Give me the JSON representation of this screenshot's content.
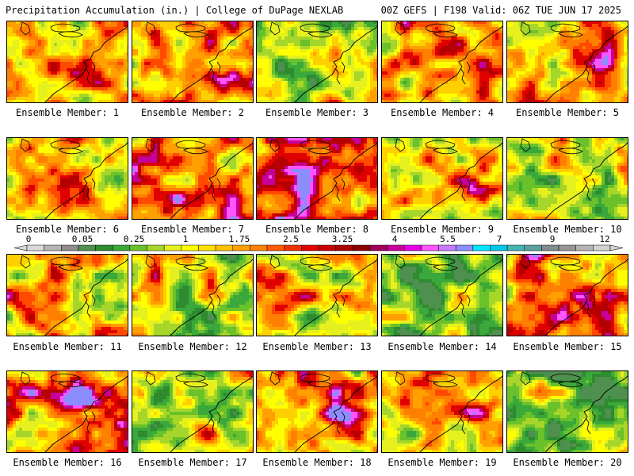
{
  "header": {
    "left": "Precipitation Accumulation (in.) | College of DuPage NEXLAB",
    "right": "00Z GEFS | F198 Valid: 06Z TUE JUN 17 2025"
  },
  "members": [
    {
      "label": "Ensemble Member: 1",
      "wetness": 0.6,
      "seed": 11,
      "hot": 1
    },
    {
      "label": "Ensemble Member: 2",
      "wetness": 0.62,
      "seed": 23,
      "hot": 2
    },
    {
      "label": "Ensemble Member: 3",
      "wetness": 0.42,
      "seed": 37,
      "hot": 0
    },
    {
      "label": "Ensemble Member: 4",
      "wetness": 0.55,
      "seed": 41,
      "hot": 1
    },
    {
      "label": "Ensemble Member: 5",
      "wetness": 0.62,
      "seed": 53,
      "hot": 2
    },
    {
      "label": "Ensemble Member: 6",
      "wetness": 0.5,
      "seed": 61,
      "hot": 0
    },
    {
      "label": "Ensemble Member: 7",
      "wetness": 0.62,
      "seed": 71,
      "hot": 2
    },
    {
      "label": "Ensemble Member: 8",
      "wetness": 0.72,
      "seed": 83,
      "hot": 1
    },
    {
      "label": "Ensemble Member: 9",
      "wetness": 0.55,
      "seed": 97,
      "hot": 2
    },
    {
      "label": "Ensemble Member: 10",
      "wetness": 0.42,
      "seed": 101,
      "hot": 0
    },
    {
      "label": "Ensemble Member: 11",
      "wetness": 0.58,
      "seed": 113,
      "hot": 0
    },
    {
      "label": "Ensemble Member: 12",
      "wetness": 0.45,
      "seed": 127,
      "hot": 1
    },
    {
      "label": "Ensemble Member: 13",
      "wetness": 0.52,
      "seed": 131,
      "hot": 1
    },
    {
      "label": "Ensemble Member: 14",
      "wetness": 0.3,
      "seed": 149,
      "hot": 0
    },
    {
      "label": "Ensemble Member: 15",
      "wetness": 0.62,
      "seed": 151,
      "hot": 1
    },
    {
      "label": "Ensemble Member: 16",
      "wetness": 0.68,
      "seed": 163,
      "hot": 2
    },
    {
      "label": "Ensemble Member: 17",
      "wetness": 0.4,
      "seed": 173,
      "hot": 1
    },
    {
      "label": "Ensemble Member: 18",
      "wetness": 0.6,
      "seed": 181,
      "hot": 2
    },
    {
      "label": "Ensemble Member: 19",
      "wetness": 0.55,
      "seed": 191,
      "hot": 2
    },
    {
      "label": "Ensemble Member: 20",
      "wetness": 0.35,
      "seed": 199,
      "hot": 0
    }
  ],
  "colorbar": {
    "labels": [
      "0",
      "0.05",
      "0.25",
      "1",
      "1.75",
      "2.5",
      "3.25",
      "4",
      "5.5",
      "7",
      "9",
      "12"
    ],
    "colors": [
      "#d9d9d9",
      "#b4b4b4",
      "#8c8c8c",
      "#4f8f4f",
      "#2e8b2e",
      "#3aa83a",
      "#6ac12a",
      "#a6d62a",
      "#e6f01e",
      "#ffff00",
      "#ffe000",
      "#ffc000",
      "#ffa000",
      "#ff7f00",
      "#ff5a00",
      "#f03000",
      "#e00000",
      "#c80000",
      "#aa0000",
      "#8b0000",
      "#a0005a",
      "#c8009b",
      "#e600e6",
      "#ff55ff",
      "#c87aff",
      "#8c8cff",
      "#00e6ff",
      "#00c8e6",
      "#46b4b4",
      "#5aa0a0",
      "#7d8c8c",
      "#969696",
      "#b4b4b4",
      "#d2d2d2"
    ]
  }
}
